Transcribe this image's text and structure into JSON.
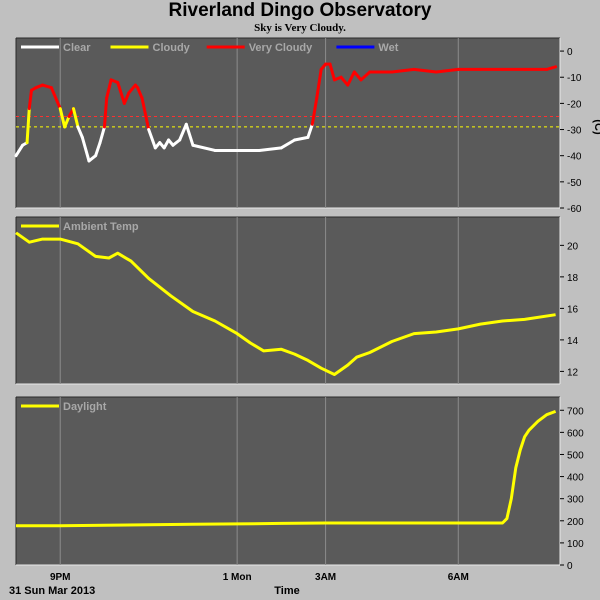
{
  "title": "Riverland Dingo Observatory",
  "subtitle": "Sky is Very Cloudy.",
  "footer": {
    "date": "31 Sun Mar 2013",
    "time_label": "Time"
  },
  "x_ticks": [
    {
      "label": "9PM",
      "t": 1.0
    },
    {
      "label": "1 Mon",
      "t": 5.0
    },
    {
      "label": "3AM",
      "t": 7.0
    },
    {
      "label": "6AM",
      "t": 10.0
    }
  ],
  "x_range": [
    0,
    12.3
  ],
  "colors": {
    "panel_bg": "#5a5a5a",
    "grid": "#8c8c8c",
    "clear": "#ffffff",
    "cloudy": "#ffff00",
    "very_cloudy": "#ff0000",
    "wet": "#0000ff",
    "cloudy_threshold": "#ffff00",
    "very_cloudy_threshold": "#ff3030"
  },
  "chart_data": [
    {
      "type": "line",
      "name": "sky",
      "y_unit": "(C)",
      "ylim": [
        -60,
        5
      ],
      "y_ticks": [
        0,
        -10,
        -20,
        -30,
        -40,
        -50,
        -60
      ],
      "legend": [
        {
          "label": "Clear",
          "color": "#ffffff"
        },
        {
          "label": "Cloudy",
          "color": "#ffff00"
        },
        {
          "label": "Very Cloudy",
          "color": "#ff0000"
        },
        {
          "label": "Wet",
          "color": "#0000ff"
        }
      ],
      "thresholds": {
        "cloudy": -29,
        "very_cloudy": -25
      },
      "x": [
        0.0,
        0.15,
        0.25,
        0.3,
        0.35,
        0.45,
        0.6,
        0.8,
        1.0,
        1.1,
        1.2,
        1.3,
        1.4,
        1.5,
        1.65,
        1.8,
        1.9,
        2.0,
        2.05,
        2.15,
        2.3,
        2.45,
        2.55,
        2.7,
        2.75,
        2.85,
        3.0,
        3.15,
        3.25,
        3.35,
        3.45,
        3.55,
        3.7,
        3.85,
        4.0,
        4.5,
        5.0,
        5.5,
        6.0,
        6.3,
        6.6,
        6.7,
        6.8,
        6.9,
        7.0,
        7.1,
        7.2,
        7.35,
        7.5,
        7.65,
        7.8,
        8.0,
        8.5,
        9.0,
        9.5,
        10.0,
        10.5,
        11.0,
        11.5,
        12.0,
        12.2
      ],
      "y": [
        -40,
        -36,
        -35,
        -22,
        -15,
        -14,
        -13,
        -14,
        -22,
        -29,
        -25,
        -22,
        -29,
        -33,
        -42,
        -40,
        -35,
        -29,
        -18,
        -11,
        -12,
        -20,
        -16,
        -13,
        -14,
        -18,
        -30,
        -37,
        -35,
        -37,
        -34,
        -36,
        -34,
        -28,
        -36,
        -38,
        -38,
        -38,
        -37,
        -34,
        -33,
        -28,
        -18,
        -7,
        -5,
        -5,
        -11,
        -10,
        -13,
        -8,
        -11,
        -8,
        -8,
        -7,
        -8,
        -7,
        -7,
        -7,
        -7,
        -7,
        -6
      ]
    },
    {
      "type": "line",
      "name": "ambient",
      "legend": [
        {
          "label": "Ambient Temp",
          "color": "#ffff00"
        }
      ],
      "ylim": [
        11.2,
        21.8
      ],
      "y_ticks": [
        12,
        14,
        16,
        18,
        20
      ],
      "x": [
        0.0,
        0.3,
        0.6,
        1.0,
        1.4,
        1.8,
        2.1,
        2.3,
        2.6,
        3.0,
        3.5,
        4.0,
        4.5,
        5.0,
        5.3,
        5.6,
        6.0,
        6.3,
        6.6,
        6.9,
        7.2,
        7.5,
        7.7,
        8.0,
        8.5,
        9.0,
        9.5,
        10.0,
        10.5,
        11.0,
        11.5,
        12.2
      ],
      "y": [
        20.8,
        20.2,
        20.4,
        20.4,
        20.1,
        19.3,
        19.2,
        19.5,
        19.0,
        17.9,
        16.8,
        15.8,
        15.2,
        14.4,
        13.8,
        13.3,
        13.4,
        13.1,
        12.7,
        12.2,
        11.8,
        12.4,
        12.9,
        13.2,
        13.9,
        14.4,
        14.5,
        14.7,
        15.0,
        15.2,
        15.3,
        15.6
      ]
    },
    {
      "type": "line",
      "name": "daylight",
      "legend": [
        {
          "label": "Daylight",
          "color": "#ffff00"
        }
      ],
      "ylim": [
        0,
        760
      ],
      "y_ticks": [
        0,
        100,
        200,
        300,
        400,
        500,
        600,
        700
      ],
      "x": [
        0.0,
        1.0,
        2.0,
        3.0,
        4.0,
        5.0,
        6.0,
        7.0,
        8.0,
        9.0,
        10.0,
        10.5,
        11.0,
        11.1,
        11.2,
        11.3,
        11.4,
        11.5,
        11.6,
        11.8,
        12.0,
        12.2
      ],
      "y": [
        178,
        178,
        180,
        182,
        184,
        186,
        188,
        190,
        190,
        190,
        190,
        190,
        190,
        210,
        300,
        440,
        520,
        580,
        610,
        650,
        680,
        695
      ]
    }
  ]
}
